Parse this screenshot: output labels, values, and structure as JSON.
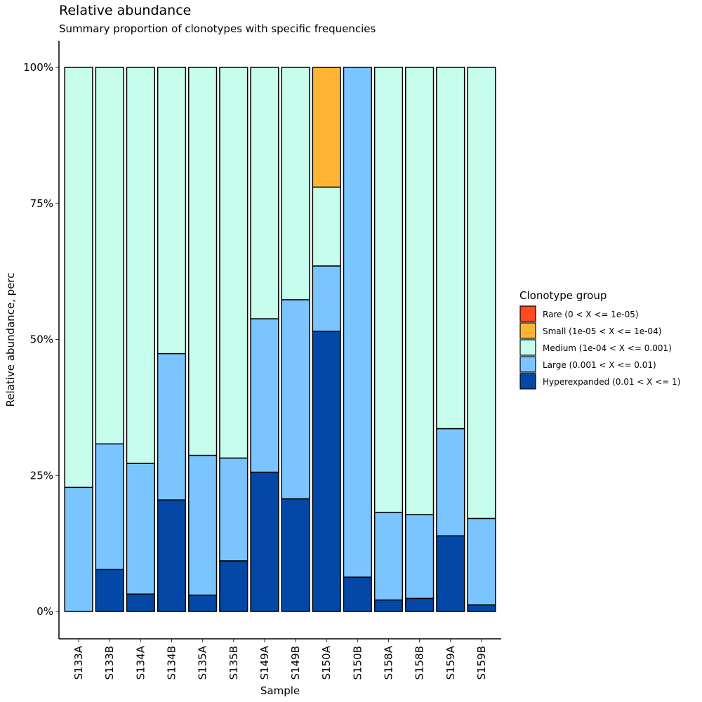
{
  "chart_data": {
    "type": "bar",
    "stacked": true,
    "title": "Relative abundance",
    "subtitle": "Summary proportion of clonotypes with specific frequencies",
    "xlabel": "Sample",
    "ylabel": "Relative abundance, perc",
    "ylim": [
      0,
      1
    ],
    "yticks": [
      0,
      0.25,
      0.5,
      0.75,
      1.0
    ],
    "ytick_labels": [
      "0%",
      "25%",
      "50%",
      "75%",
      "100%"
    ],
    "grid": false,
    "legend": {
      "title": "Clonotype group",
      "placement": "right"
    },
    "categories": [
      "S133A",
      "S133B",
      "S134A",
      "S134B",
      "S135A",
      "S135B",
      "S149A",
      "S149B",
      "S150A",
      "S150B",
      "S158A",
      "S158B",
      "S159A",
      "S159B"
    ],
    "series": [
      {
        "name": "Rare (0 < X <= 1e-05)",
        "color": "#FF4B20",
        "values": [
          0,
          0,
          0,
          0,
          0,
          0,
          0,
          0,
          0,
          0,
          0,
          0,
          0,
          0
        ]
      },
      {
        "name": "Small (1e-05 < X <= 1e-04)",
        "color": "#FFB433",
        "values": [
          0,
          0,
          0,
          0,
          0,
          0,
          0,
          0,
          0.22,
          0,
          0,
          0,
          0,
          0
        ]
      },
      {
        "name": "Medium (1e-04 < X <= 0.001)",
        "color": "#C6FDEC",
        "values": [
          0.772,
          0.692,
          0.728,
          0.526,
          0.713,
          0.718,
          0.462,
          0.427,
          0.145,
          0,
          0.818,
          0.822,
          0.664,
          0.829
        ]
      },
      {
        "name": "Large (0.001 < X <= 0.01)",
        "color": "#7AC5FF",
        "values": [
          0.228,
          0.231,
          0.24,
          0.269,
          0.257,
          0.189,
          0.282,
          0.366,
          0.12,
          0.937,
          0.161,
          0.154,
          0.197,
          0.159
        ]
      },
      {
        "name": "Hyperexpanded (0.01 < X <= 1)",
        "color": "#0348A6",
        "values": [
          0,
          0.077,
          0.032,
          0.205,
          0.03,
          0.093,
          0.256,
          0.207,
          0.515,
          0.063,
          0.021,
          0.024,
          0.139,
          0.012
        ]
      }
    ]
  }
}
